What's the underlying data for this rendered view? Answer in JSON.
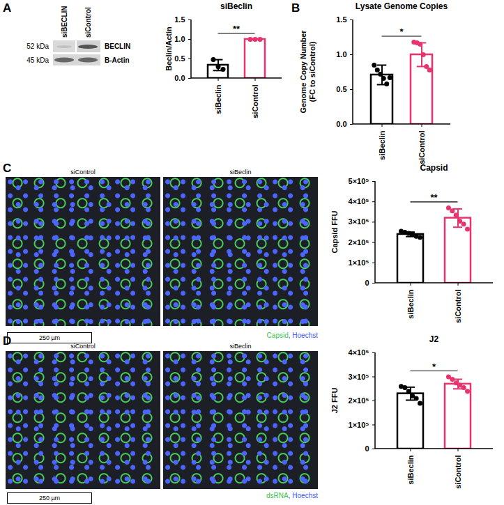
{
  "chart_data": [
    {
      "type": "bar",
      "panel": "A",
      "title": "siBeclin",
      "ylabel": "Beclin/Actin",
      "categories": [
        "siBeclin",
        "siControl"
      ],
      "values": [
        0.34,
        1.0
      ],
      "errors": [
        0.14,
        0.0
      ],
      "points": [
        [
          0.48,
          0.3,
          0.23
        ],
        [
          1.0,
          1.0,
          1.0
        ]
      ],
      "colors": [
        "#000000",
        "#e8336e"
      ],
      "ylim": [
        0,
        1.5
      ],
      "yticks": [
        {
          "value": 0,
          "label": "0.0"
        },
        {
          "value": 0.5,
          "label": "0.5"
        },
        {
          "value": 1,
          "label": "1.0"
        },
        {
          "value": 1.5,
          "label": "1.5"
        }
      ],
      "annotation": "**"
    },
    {
      "type": "bar",
      "panel": "B",
      "title": "Lysate Genome Copies",
      "ylabel": "Genome Copy Number\n(FC to siControl)",
      "categories": [
        "siBeclin",
        "siControl"
      ],
      "values": [
        0.71,
        1.0
      ],
      "errors": [
        0.14,
        0.17
      ],
      "points": [
        [
          0.85,
          0.78,
          0.72,
          0.66,
          0.58,
          0.67
        ],
        [
          1.18,
          1.17,
          1.15,
          1.0,
          0.83,
          0.78
        ]
      ],
      "colors": [
        "#000000",
        "#e8336e"
      ],
      "ylim": [
        0,
        1.5
      ],
      "yticks": [
        {
          "value": 0,
          "label": "0.0"
        },
        {
          "value": 0.5,
          "label": "0.5"
        },
        {
          "value": 1,
          "label": "1.0"
        },
        {
          "value": 1.5,
          "label": "1.5"
        }
      ],
      "annotation": "*"
    },
    {
      "type": "bar",
      "panel": "C",
      "title": "Capsid",
      "ylabel": "Capsid FFU",
      "categories": [
        "siBeclin",
        "siControl"
      ],
      "values": [
        240000,
        320000
      ],
      "errors": [
        11000,
        45000
      ],
      "points": [
        [
          255000,
          250000,
          245000,
          240000,
          230000,
          225000
        ],
        [
          370000,
          355000,
          335000,
          305000,
          290000,
          265000
        ]
      ],
      "colors": [
        "#000000",
        "#e8336e"
      ],
      "ylim": [
        0,
        500000
      ],
      "yticks": [
        0,
        {
          "value": 100000,
          "label": "1×10⁵"
        },
        {
          "value": 200000,
          "label": "2×10⁵"
        },
        {
          "value": 300000,
          "label": "3×10⁵"
        },
        {
          "value": 400000,
          "label": "4×10⁵"
        },
        {
          "value": 500000,
          "label": "5×10⁵"
        }
      ],
      "annotation": "**"
    },
    {
      "type": "bar",
      "panel": "D",
      "title": "J2",
      "ylabel": "J2 FFU",
      "categories": [
        "siBeclin",
        "siControl"
      ],
      "values": [
        230000,
        270000
      ],
      "errors": [
        27000,
        20000
      ],
      "points": [
        [
          260000,
          255000,
          240000,
          220000,
          210000,
          190000
        ],
        [
          300000,
          290000,
          275000,
          265000,
          255000,
          240000
        ]
      ],
      "colors": [
        "#000000",
        "#e8336e"
      ],
      "ylim": [
        0,
        400000
      ],
      "yticks": [
        0,
        {
          "value": 100000,
          "label": "1×10⁵"
        },
        {
          "value": 200000,
          "label": "2×10⁵"
        },
        {
          "value": 300000,
          "label": "3×10⁵"
        },
        {
          "value": 400000,
          "label": "4×10⁵"
        }
      ],
      "annotation": "*"
    }
  ],
  "images": {
    "blot": {
      "panel": "A",
      "lanes": [
        "siBECLIN",
        "siControl"
      ],
      "rows": [
        {
          "mw": "52 kDa",
          "label": "BECLIN"
        },
        {
          "mw": "45 kDa",
          "label": "B-Actin"
        }
      ]
    },
    "micrographs": [
      {
        "panel": "C",
        "images": [
          "siControl",
          "siBeclin"
        ],
        "scale_bar": "250 µm",
        "legend": [
          {
            "text": "Capsid",
            "color": "#35c44a"
          },
          {
            "text": ", Hoechst",
            "color": "#3a55ff"
          }
        ]
      },
      {
        "panel": "D",
        "images": [
          "siControl",
          "siBeclin"
        ],
        "scale_bar": "250 µm",
        "legend": [
          {
            "text": "dsRNA",
            "color": "#35c44a"
          },
          {
            "text": ", Hoechst",
            "color": "#3a55ff"
          }
        ]
      }
    ]
  }
}
